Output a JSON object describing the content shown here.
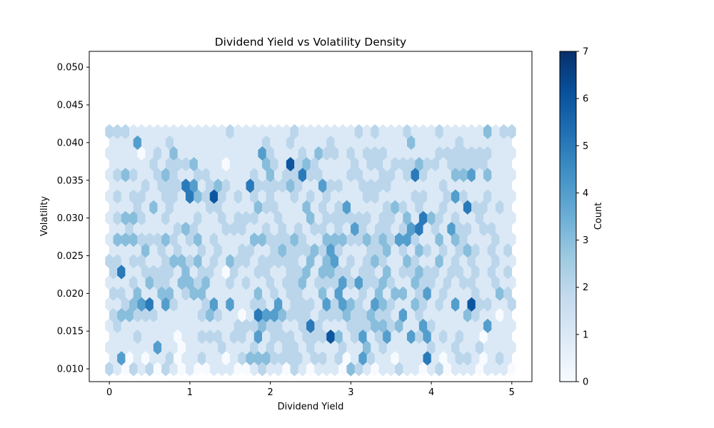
{
  "chart_data": {
    "type": "heatmap",
    "subtype": "hexbin",
    "title": "Dividend Yield vs Volatility Density",
    "xlabel": "Dividend Yield",
    "ylabel": "Volatility",
    "xlim": [
      -0.25,
      5.25
    ],
    "ylim": [
      0.0083,
      0.0521
    ],
    "xticks": [
      0,
      1,
      2,
      3,
      4,
      5
    ],
    "xtick_labels": [
      "0",
      "1",
      "2",
      "3",
      "4",
      "5"
    ],
    "yticks": [
      0.01,
      0.015,
      0.02,
      0.025,
      0.03,
      0.035,
      0.04,
      0.045,
      0.05
    ],
    "ytick_labels": [
      "0.010",
      "0.015",
      "0.020",
      "0.025",
      "0.030",
      "0.035",
      "0.040",
      "0.045",
      "0.050"
    ],
    "colormap": "Blues",
    "colorbar": {
      "label": "Count",
      "range": [
        0,
        7
      ],
      "ticks": [
        0,
        1,
        2,
        3,
        4,
        5,
        6,
        7
      ],
      "tick_labels": [
        "0",
        "1",
        "2",
        "3",
        "4",
        "5",
        "6",
        "7"
      ]
    },
    "grid": false,
    "legend": "none",
    "hex_grid": {
      "x_start": 0,
      "x_step": 0.1,
      "y_start": 0.01,
      "y_step": 0.00143,
      "note_rows": "row 0 at y=0.010, odd rows offset by half step in x",
      "rows": [
        [
          2,
          1,
          0,
          2,
          1,
          2,
          0,
          2,
          1,
          0,
          1,
          0,
          0,
          1,
          1,
          1,
          0,
          0,
          1,
          2,
          1,
          1,
          0,
          2,
          1,
          0,
          1,
          1,
          1,
          0,
          3,
          2,
          1,
          0,
          1,
          1,
          2,
          1,
          1,
          0,
          1,
          2,
          0,
          1,
          1,
          1,
          0,
          1,
          1,
          1,
          0
        ],
        [
          1,
          4,
          0,
          1,
          0,
          1,
          1,
          2,
          0,
          1,
          1,
          2,
          1,
          1,
          0,
          1,
          2,
          3,
          3,
          3,
          2,
          2,
          2,
          2,
          1,
          2,
          2,
          1,
          2,
          0,
          1,
          4,
          2,
          1,
          1,
          0,
          1,
          1,
          1,
          5,
          1,
          0,
          1,
          2,
          2,
          1,
          0,
          1,
          2,
          1
        ],
        [
          1,
          1,
          1,
          1,
          1,
          1,
          4,
          1,
          1,
          0,
          1,
          1,
          1,
          1,
          2,
          1,
          1,
          1,
          2,
          1,
          2,
          1,
          2,
          2,
          1,
          2,
          1,
          1,
          1,
          2,
          1,
          1,
          3,
          1,
          2,
          1,
          1,
          1,
          1,
          1,
          2,
          1,
          1,
          2,
          1,
          1,
          2,
          1,
          1,
          1,
          1
        ],
        [
          1,
          1,
          1,
          2,
          1,
          1,
          1,
          1,
          0,
          1,
          1,
          2,
          2,
          2,
          1,
          2,
          2,
          1,
          4,
          1,
          2,
          2,
          2,
          1,
          2,
          2,
          2,
          6,
          3,
          1,
          2,
          4,
          1,
          2,
          4,
          1,
          1,
          4,
          2,
          4,
          1,
          2,
          1,
          2,
          1,
          1,
          0,
          1,
          1,
          1
        ],
        [
          1,
          2,
          1,
          1,
          1,
          1,
          1,
          1,
          1,
          1,
          1,
          1,
          1,
          1,
          1,
          1,
          2,
          2,
          2,
          3,
          2,
          2,
          1,
          1,
          2,
          5,
          2,
          1,
          1,
          1,
          2,
          2,
          2,
          3,
          3,
          2,
          3,
          1,
          1,
          4,
          2,
          1,
          1,
          1,
          1,
          1,
          1,
          4,
          1,
          1,
          1
        ],
        [
          2,
          3,
          3,
          2,
          2,
          2,
          1,
          1,
          1,
          1,
          1,
          2,
          3,
          2,
          1,
          1,
          0,
          1,
          5,
          4,
          4,
          3,
          2,
          2,
          2,
          1,
          2,
          2,
          2,
          3,
          2,
          2,
          3,
          2,
          2,
          1,
          4,
          1,
          2,
          1,
          1,
          1,
          1,
          1,
          3,
          2,
          1,
          1,
          0,
          1
        ],
        [
          1,
          1,
          2,
          3,
          4,
          5,
          1,
          4,
          2,
          1,
          1,
          1,
          2,
          4,
          1,
          4,
          1,
          1,
          2,
          2,
          1,
          4,
          1,
          2,
          2,
          2,
          1,
          4,
          2,
          4,
          3,
          2,
          1,
          4,
          3,
          2,
          1,
          1,
          3,
          2,
          1,
          2,
          1,
          4,
          1,
          6,
          2,
          2,
          1,
          1,
          2
        ],
        [
          2,
          2,
          1,
          3,
          1,
          1,
          3,
          3,
          1,
          2,
          3,
          3,
          1,
          1,
          1,
          1,
          1,
          1,
          3,
          1,
          2,
          1,
          2,
          2,
          1,
          1,
          3,
          1,
          4,
          1,
          1,
          2,
          1,
          3,
          1,
          3,
          3,
          1,
          2,
          4,
          1,
          2,
          1,
          1,
          1,
          2,
          1,
          1,
          3,
          2
        ],
        [
          1,
          1,
          1,
          2,
          1,
          3,
          2,
          2,
          1,
          3,
          3,
          2,
          3,
          1,
          1,
          2,
          1,
          2,
          1,
          1,
          2,
          1,
          2,
          2,
          3,
          1,
          2,
          2,
          2,
          4,
          2,
          4,
          2,
          2,
          3,
          2,
          1,
          1,
          3,
          2,
          2,
          1,
          2,
          1,
          2,
          2,
          1,
          1,
          2,
          1,
          1
        ],
        [
          2,
          5,
          1,
          1,
          2,
          2,
          2,
          2,
          1,
          3,
          1,
          2,
          2,
          1,
          0,
          2,
          1,
          1,
          2,
          2,
          1,
          1,
          2,
          2,
          3,
          1,
          3,
          3,
          2,
          2,
          1,
          2,
          2,
          1,
          3,
          1,
          2,
          2,
          3,
          2,
          2,
          1,
          2,
          2,
          1,
          2,
          1,
          2,
          1,
          2
        ],
        [
          2,
          2,
          1,
          2,
          2,
          1,
          1,
          2,
          3,
          3,
          2,
          3,
          1,
          2,
          1,
          3,
          2,
          2,
          1,
          2,
          2,
          2,
          2,
          2,
          1,
          3,
          1,
          3,
          4,
          1,
          2,
          1,
          2,
          3,
          2,
          1,
          1,
          3,
          2,
          1,
          1,
          3,
          1,
          2,
          1,
          2,
          1,
          1,
          2,
          1,
          1
        ],
        [
          1,
          1,
          1,
          1,
          3,
          1,
          2,
          1,
          2,
          1,
          1,
          2,
          1,
          2,
          1,
          1,
          2,
          2,
          1,
          1,
          2,
          3,
          2,
          2,
          2,
          3,
          2,
          4,
          2,
          1,
          1,
          1,
          2,
          2,
          3,
          1,
          2,
          1,
          3,
          2,
          1,
          2,
          1,
          2,
          3,
          2,
          1,
          2,
          1,
          2
        ],
        [
          1,
          3,
          3,
          3,
          2,
          2,
          2,
          3,
          2,
          1,
          2,
          3,
          1,
          2,
          1,
          1,
          1,
          1,
          3,
          3,
          2,
          2,
          2,
          3,
          2,
          1,
          1,
          3,
          3,
          3,
          2,
          2,
          3,
          2,
          3,
          2,
          4,
          4,
          2,
          1,
          1,
          3,
          1,
          3,
          2,
          1,
          1,
          1,
          2,
          1,
          1
        ],
        [
          1,
          1,
          2,
          1,
          1,
          1,
          1,
          1,
          2,
          3,
          2,
          1,
          1,
          1,
          2,
          2,
          2,
          1,
          1,
          2,
          1,
          2,
          1,
          2,
          1,
          2,
          2,
          1,
          2,
          1,
          4,
          2,
          1,
          2,
          2,
          1,
          2,
          4,
          5,
          1,
          2,
          1,
          4,
          2,
          2,
          1,
          2,
          2,
          1,
          1
        ],
        [
          1,
          2,
          3,
          3,
          2,
          1,
          1,
          2,
          1,
          1,
          1,
          2,
          1,
          1,
          2,
          1,
          2,
          2,
          2,
          1,
          1,
          2,
          1,
          1,
          1,
          3,
          1,
          2,
          2,
          2,
          2,
          2,
          2,
          1,
          2,
          2,
          1,
          3,
          1,
          5,
          3,
          2,
          1,
          2,
          1,
          1,
          2,
          1,
          1,
          1,
          1
        ],
        [
          1,
          1,
          1,
          2,
          1,
          3,
          1,
          2,
          1,
          1,
          1,
          1,
          2,
          2,
          1,
          1,
          1,
          1,
          3,
          2,
          2,
          1,
          1,
          1,
          3,
          1,
          2,
          1,
          2,
          4,
          1,
          1,
          1,
          1,
          2,
          3,
          2,
          1,
          2,
          1,
          1,
          2,
          1,
          1,
          5,
          2,
          2,
          1,
          2,
          1
        ],
        [
          1,
          2,
          1,
          2,
          2,
          1,
          1,
          2,
          2,
          1,
          5,
          3,
          2,
          6,
          2,
          1,
          2,
          1,
          2,
          1,
          2,
          1,
          1,
          2,
          1,
          2,
          1,
          2,
          1,
          1,
          1,
          1,
          2,
          2,
          1,
          1,
          1,
          1,
          2,
          2,
          1,
          1,
          2,
          4,
          2,
          1,
          1,
          2,
          1,
          1,
          1
        ],
        [
          1,
          1,
          1,
          1,
          2,
          1,
          2,
          2,
          2,
          5,
          4,
          1,
          2,
          3,
          2,
          1,
          1,
          5,
          2,
          2,
          2,
          2,
          3,
          2,
          1,
          1,
          4,
          2,
          2,
          1,
          1,
          2,
          2,
          2,
          2,
          1,
          1,
          1,
          1,
          1,
          1,
          2,
          1,
          1,
          1,
          1,
          1,
          1,
          1,
          1
        ],
        [
          1,
          2,
          3,
          2,
          1,
          1,
          2,
          3,
          2,
          1,
          1,
          2,
          2,
          1,
          1,
          1,
          1,
          1,
          2,
          1,
          3,
          1,
          2,
          2,
          5,
          2,
          2,
          1,
          1,
          1,
          2,
          2,
          1,
          1,
          2,
          2,
          1,
          2,
          5,
          2,
          1,
          1,
          1,
          3,
          3,
          4,
          1,
          3,
          1,
          1,
          1
        ],
        [
          1,
          1,
          1,
          1,
          1,
          2,
          1,
          2,
          2,
          2,
          3,
          1,
          1,
          1,
          0,
          1,
          1,
          1,
          1,
          3,
          2,
          1,
          6,
          2,
          3,
          2,
          1,
          1,
          1,
          1,
          2,
          1,
          2,
          2,
          1,
          2,
          2,
          2,
          3,
          2,
          2,
          1,
          2,
          2,
          2,
          2,
          2,
          1,
          1,
          1
        ],
        [
          1,
          1,
          1,
          1,
          0,
          1,
          2,
          1,
          3,
          1,
          1,
          1,
          1,
          1,
          1,
          1,
          1,
          1,
          1,
          4,
          2,
          1,
          1,
          1,
          2,
          1,
          3,
          2,
          2,
          1,
          2,
          1,
          2,
          2,
          2,
          1,
          1,
          1,
          1,
          1,
          1,
          2,
          2,
          2,
          2,
          2,
          2,
          2,
          1,
          1,
          1
        ],
        [
          1,
          1,
          1,
          4,
          1,
          1,
          1,
          2,
          1,
          1,
          1,
          1,
          1,
          1,
          1,
          1,
          1,
          1,
          1,
          2,
          1,
          1,
          2,
          1,
          1,
          1,
          1,
          2,
          1,
          1,
          1,
          1,
          1,
          1,
          1,
          1,
          1,
          3,
          1,
          1,
          1,
          1,
          1,
          2,
          1,
          1,
          1,
          1,
          1,
          1
        ],
        [
          2,
          2,
          2,
          1,
          1,
          1,
          1,
          1,
          1,
          1,
          1,
          1,
          1,
          1,
          1,
          2,
          1,
          1,
          1,
          1,
          1,
          1,
          1,
          2,
          1,
          1,
          1,
          1,
          1,
          1,
          1,
          2,
          1,
          2,
          1,
          1,
          1,
          2,
          1,
          1,
          1,
          2,
          1,
          1,
          1,
          1,
          1,
          3,
          1,
          2,
          2
        ]
      ]
    }
  }
}
